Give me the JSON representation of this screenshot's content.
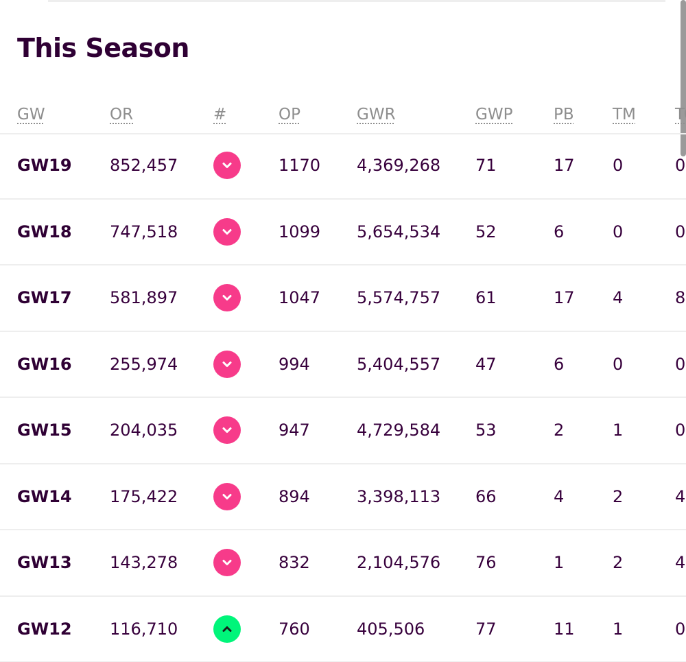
{
  "title": "This Season",
  "colors": {
    "down": "#f73b8a",
    "up": "#00f57a",
    "text": "#37003c"
  },
  "columns": [
    "GW",
    "OR",
    "#",
    "OP",
    "GWR",
    "GWP",
    "PB",
    "TM",
    "TC"
  ],
  "rows": [
    {
      "gw": "GW19",
      "or": "852,457",
      "direction": "down",
      "icon": "chevron-down-icon",
      "op": "1170",
      "gwr": "4,369,268",
      "gwp": "71",
      "pb": "17",
      "tm": "0",
      "tc": "0"
    },
    {
      "gw": "GW18",
      "or": "747,518",
      "direction": "down",
      "icon": "chevron-down-icon",
      "op": "1099",
      "gwr": "5,654,534",
      "gwp": "52",
      "pb": "6",
      "tm": "0",
      "tc": "0"
    },
    {
      "gw": "GW17",
      "or": "581,897",
      "direction": "down",
      "icon": "chevron-down-icon",
      "op": "1047",
      "gwr": "5,574,757",
      "gwp": "61",
      "pb": "17",
      "tm": "4",
      "tc": "8"
    },
    {
      "gw": "GW16",
      "or": "255,974",
      "direction": "down",
      "icon": "chevron-down-icon",
      "op": "994",
      "gwr": "5,404,557",
      "gwp": "47",
      "pb": "6",
      "tm": "0",
      "tc": "0"
    },
    {
      "gw": "GW15",
      "or": "204,035",
      "direction": "down",
      "icon": "chevron-down-icon",
      "op": "947",
      "gwr": "4,729,584",
      "gwp": "53",
      "pb": "2",
      "tm": "1",
      "tc": "0"
    },
    {
      "gw": "GW14",
      "or": "175,422",
      "direction": "down",
      "icon": "chevron-down-icon",
      "op": "894",
      "gwr": "3,398,113",
      "gwp": "66",
      "pb": "4",
      "tm": "2",
      "tc": "4"
    },
    {
      "gw": "GW13",
      "or": "143,278",
      "direction": "down",
      "icon": "chevron-down-icon",
      "op": "832",
      "gwr": "2,104,576",
      "gwp": "76",
      "pb": "1",
      "tm": "2",
      "tc": "4"
    },
    {
      "gw": "GW12",
      "or": "116,710",
      "direction": "up",
      "icon": "chevron-up-icon",
      "op": "760",
      "gwr": "405,506",
      "gwp": "77",
      "pb": "11",
      "tm": "1",
      "tc": "0"
    }
  ]
}
